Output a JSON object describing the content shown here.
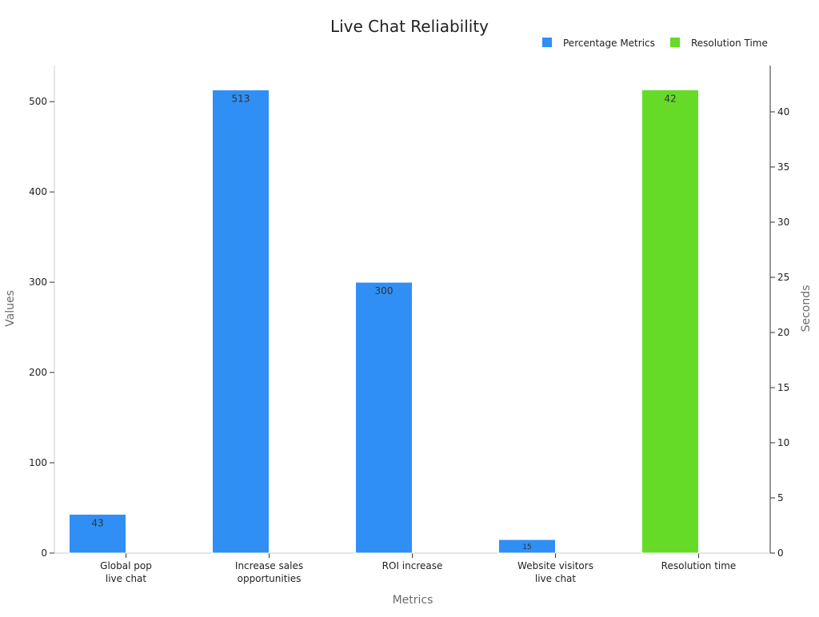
{
  "chart_data": {
    "type": "bar",
    "title": "Live Chat Reliability",
    "xlabel": "Metrics",
    "ylabel": "Values",
    "y2label": "Seconds",
    "categories": [
      [
        "Global pop",
        "live chat"
      ],
      [
        "Increase sales",
        "opportunities"
      ],
      [
        "ROI increase"
      ],
      [
        "Website visitors",
        "live chat"
      ],
      [
        "Resolution time"
      ]
    ],
    "ylim": [
      0,
      540
    ],
    "y2lim": [
      0,
      44.2
    ],
    "yticks": [
      0,
      100,
      200,
      300,
      400,
      500
    ],
    "y2ticks": [
      0,
      5,
      10,
      15,
      20,
      25,
      30,
      35,
      40
    ],
    "legend_position": "top-right",
    "grid": false,
    "series": [
      {
        "name": "Percentage Metrics",
        "axis": "left",
        "color": "#2f8ff5",
        "offset": "left",
        "values": [
          43,
          513,
          300,
          15,
          null
        ],
        "labels": [
          "43",
          "513",
          "300",
          "15",
          ""
        ]
      },
      {
        "name": "Resolution Time",
        "axis": "right",
        "color": "#66db27",
        "offset": "left",
        "values": [
          null,
          null,
          null,
          null,
          42
        ],
        "labels": [
          "",
          "",
          "",
          "",
          "42"
        ]
      }
    ]
  }
}
